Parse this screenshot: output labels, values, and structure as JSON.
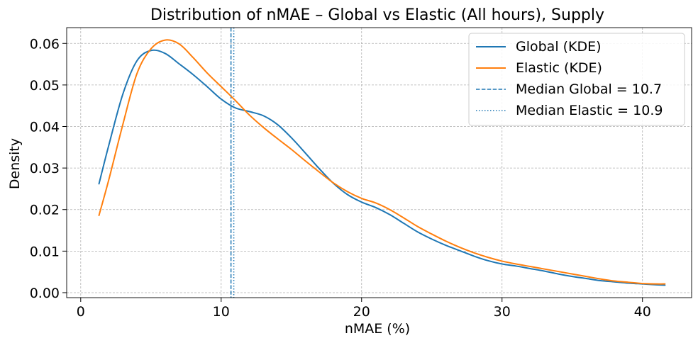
{
  "chart_data": {
    "type": "line",
    "title": "Distribution of nMAE – Global vs Elastic (All hours), Supply",
    "xlabel": "nMAE (%)",
    "ylabel": "Density",
    "xlim": [
      -1,
      43.5
    ],
    "ylim": [
      -0.0012,
      0.0638
    ],
    "xticks": [
      0,
      10,
      20,
      30,
      40
    ],
    "yticks": [
      0.0,
      0.01,
      0.02,
      0.03,
      0.04,
      0.05,
      0.06
    ],
    "xtick_labels": [
      "0",
      "10",
      "20",
      "30",
      "40"
    ],
    "ytick_labels": [
      "0.00",
      "0.01",
      "0.02",
      "0.03",
      "0.04",
      "0.05",
      "0.06"
    ],
    "grid": true,
    "legend_position": "top-right",
    "series": [
      {
        "name": "Global (KDE)",
        "color": "#1f77b4",
        "style": "solid",
        "x": [
          1.3,
          2,
          3,
          4,
          5,
          6,
          7,
          8,
          9,
          10,
          11,
          12,
          13,
          14,
          15,
          16,
          17,
          18,
          19,
          20,
          21,
          22,
          23,
          24,
          25,
          26,
          27,
          28,
          29,
          30,
          31,
          32,
          33,
          34,
          35,
          36,
          37,
          38,
          39,
          40,
          41,
          41.6
        ],
        "y": [
          0.0262,
          0.0355,
          0.0478,
          0.0558,
          0.0583,
          0.0576,
          0.0551,
          0.0525,
          0.0496,
          0.0466,
          0.0445,
          0.0436,
          0.0426,
          0.0405,
          0.0373,
          0.0336,
          0.0298,
          0.0263,
          0.0236,
          0.0218,
          0.0205,
          0.0188,
          0.0167,
          0.0146,
          0.0129,
          0.0114,
          0.0101,
          0.0088,
          0.0077,
          0.0069,
          0.0064,
          0.0058,
          0.0052,
          0.0045,
          0.0039,
          0.0034,
          0.0029,
          0.0026,
          0.0023,
          0.0021,
          0.0019,
          0.0018
        ]
      },
      {
        "name": "Elastic (KDE)",
        "color": "#ff7f0e",
        "style": "solid",
        "x": [
          1.3,
          2,
          3,
          4,
          5,
          6,
          7,
          8,
          9,
          10,
          11,
          12,
          13,
          14,
          15,
          16,
          17,
          18,
          19,
          20,
          21,
          22,
          23,
          24,
          25,
          26,
          27,
          28,
          29,
          30,
          31,
          32,
          33,
          34,
          35,
          36,
          37,
          38,
          39,
          40,
          41,
          41.6
        ],
        "y": [
          0.0186,
          0.0272,
          0.0405,
          0.0527,
          0.0587,
          0.0608,
          0.0599,
          0.0566,
          0.0529,
          0.0496,
          0.0463,
          0.0428,
          0.0398,
          0.0371,
          0.0345,
          0.0317,
          0.029,
          0.0264,
          0.0243,
          0.0227,
          0.0216,
          0.02,
          0.018,
          0.0159,
          0.0141,
          0.0124,
          0.0109,
          0.0096,
          0.0085,
          0.0076,
          0.0069,
          0.0063,
          0.0057,
          0.0051,
          0.0045,
          0.0039,
          0.0033,
          0.0028,
          0.0025,
          0.0022,
          0.0021,
          0.0021
        ]
      }
    ],
    "vlines": [
      {
        "name": "Median Global = 10.7",
        "x": 10.7,
        "color": "#1f77b4",
        "style": "dashed"
      },
      {
        "name": "Median Elastic = 10.9",
        "x": 10.9,
        "color": "#1f77b4",
        "style": "dotted"
      }
    ]
  }
}
